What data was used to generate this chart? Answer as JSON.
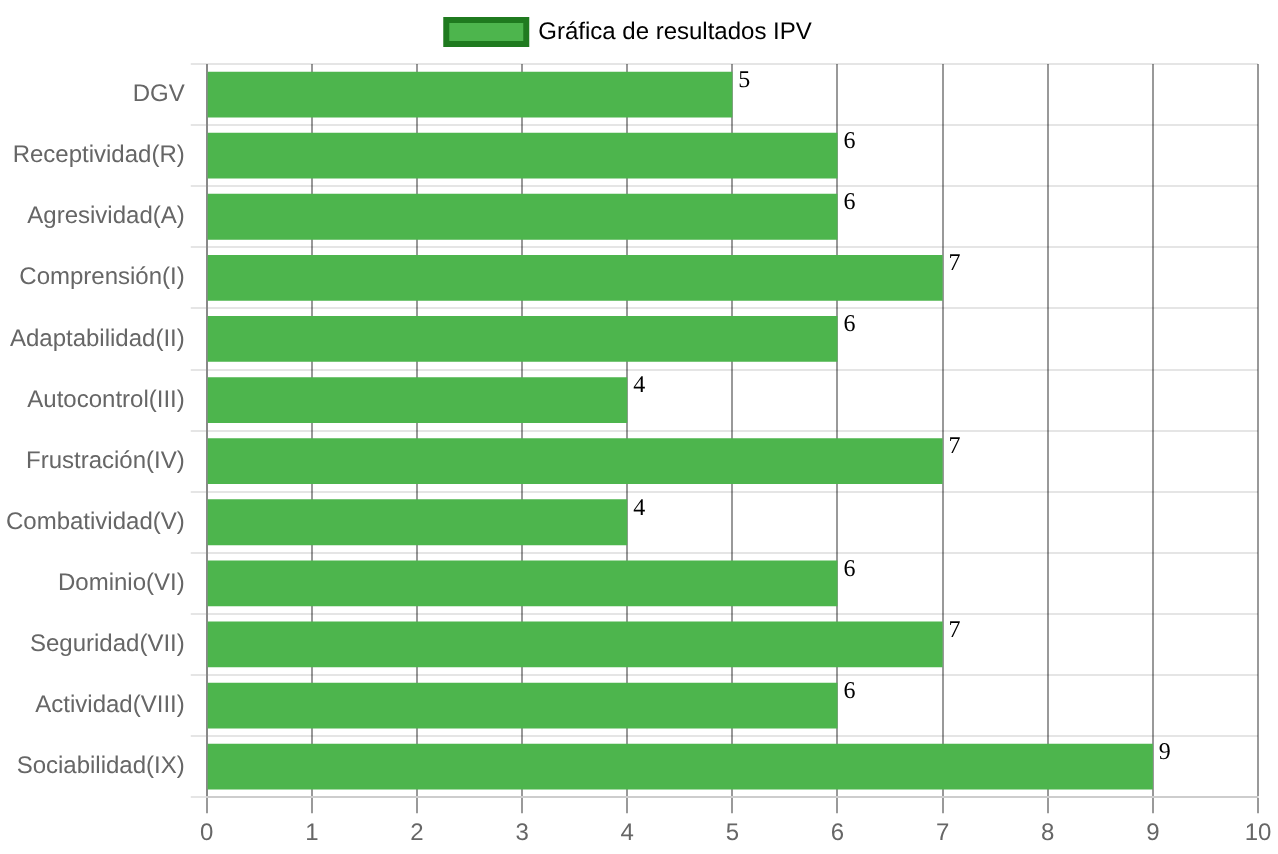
{
  "chart_data": {
    "type": "bar",
    "orientation": "horizontal",
    "categories": [
      "DGV",
      "Receptividad(R)",
      "Agresividad(A)",
      "Comprensión(I)",
      "Adaptabilidad(II)",
      "Autocontrol(III)",
      "Frustración(IV)",
      "Combatividad(V)",
      "Dominio(VI)",
      "Seguridad(VII)",
      "Actividad(VIII)",
      "Sociabilidad(IX)"
    ],
    "series": [
      {
        "name": "Gráfica de resultados IPV",
        "color": "#4db54d",
        "values": [
          5,
          6,
          6,
          7,
          6,
          4,
          7,
          4,
          6,
          7,
          6,
          9
        ]
      }
    ],
    "xlim": [
      0,
      10
    ],
    "xticks": [
      0,
      1,
      2,
      3,
      4,
      5,
      6,
      7,
      8,
      9,
      10
    ],
    "grid": true,
    "legend": "top",
    "data_labels": true
  }
}
